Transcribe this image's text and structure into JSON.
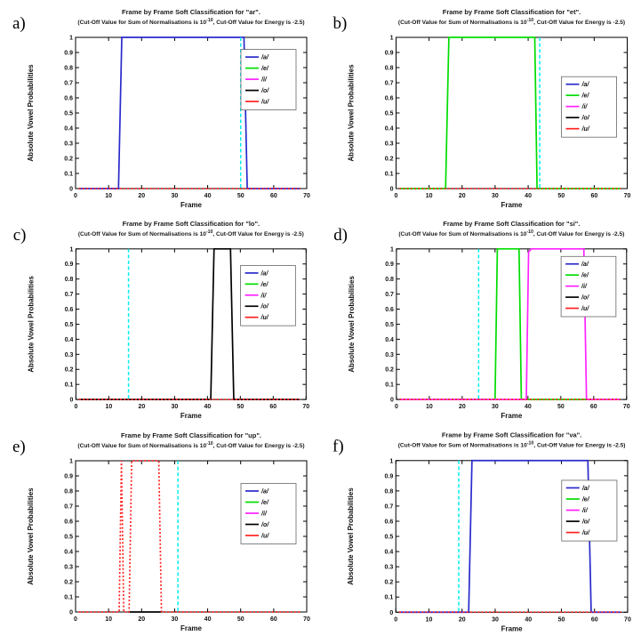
{
  "figure": {
    "subtitle": {
      "prefix": "(Cut-Off Value for Sum of Normalisations is 10",
      "superscript": "-10",
      "suffix": ", Cut-Off Value for Energy is -2.5)"
    },
    "axis": {
      "xlabel": "Frame",
      "ylabel": "Absolute Vowel Probabilities",
      "xlim": [
        0,
        70
      ],
      "ylim": [
        0,
        1
      ],
      "xticks": [
        0,
        10,
        20,
        30,
        40,
        50,
        60,
        70
      ],
      "ytick_labels": [
        "0",
        "0.1",
        "0.2",
        "0.3",
        "0.4",
        "0.5",
        "0.6",
        "0.7",
        "0.8",
        "0.9",
        "1"
      ],
      "grid": false
    },
    "legend_entries": [
      {
        "label": "/a/",
        "color": "#2a2acc"
      },
      {
        "label": "/e/",
        "color": "#00dd00"
      },
      {
        "label": "/i/",
        "color": "#ff22ff"
      },
      {
        "label": "/o/",
        "color": "#000000"
      },
      {
        "label": "/u/",
        "color": "#ff2222"
      }
    ],
    "legend_position": "right",
    "cutoff_color": "#00eeee"
  },
  "chart_data": [
    {
      "type": "line",
      "panel_label": "a)",
      "word": "ar",
      "title": "Frame by Frame Soft Classification for \"ar\".",
      "cutoff_x": 50,
      "legend_y_frac": 0.08,
      "series": [
        {
          "label": "/a/",
          "vowel": "a",
          "color": "#2a2acc",
          "style": "solid",
          "points": [
            [
              1,
              0
            ],
            [
              13,
              0
            ],
            [
              14,
              1
            ],
            [
              51,
              1
            ],
            [
              52,
              0
            ],
            [
              68,
              0
            ]
          ]
        },
        {
          "label": "/u/",
          "vowel": "u",
          "color": "#ff2222",
          "style": "dotted",
          "points": [
            [
              1,
              0
            ],
            [
              68,
              0
            ]
          ]
        }
      ]
    },
    {
      "type": "line",
      "panel_label": "b)",
      "word": "et",
      "title": "Frame by Frame Soft Classification for \"et\".",
      "cutoff_x": 43.5,
      "legend_y_frac": 0.26,
      "series": [
        {
          "label": "/e/",
          "vowel": "e",
          "color": "#00dd00",
          "style": "solid",
          "points": [
            [
              1,
              0
            ],
            [
              15,
              0
            ],
            [
              16,
              1
            ],
            [
              42,
              1
            ],
            [
              42.7,
              0
            ],
            [
              68,
              0
            ]
          ]
        },
        {
          "label": "/u/",
          "vowel": "u",
          "color": "#ff2222",
          "style": "dotted",
          "points": [
            [
              1,
              0
            ],
            [
              68,
              0
            ]
          ]
        }
      ]
    },
    {
      "type": "line",
      "panel_label": "c)",
      "word": "lo",
      "title": "Frame by Frame Soft Classification for \"lo\".",
      "cutoff_x": 16,
      "legend_y_frac": 0.11,
      "series": [
        {
          "label": "/o/",
          "vowel": "o",
          "color": "#000000",
          "style": "solid",
          "points": [
            [
              1,
              0
            ],
            [
              41,
              0
            ],
            [
              42,
              1
            ],
            [
              47,
              1
            ],
            [
              48,
              0
            ],
            [
              68,
              0
            ]
          ]
        },
        {
          "label": "/u/",
          "vowel": "u",
          "color": "#ff2222",
          "style": "dotted",
          "points": [
            [
              1,
              0
            ],
            [
              68,
              0
            ]
          ]
        }
      ]
    },
    {
      "type": "line",
      "panel_label": "d)",
      "word": "si",
      "title": "Frame by Frame Soft Classification for \"si\".",
      "cutoff_x": 25,
      "legend_y_frac": 0.05,
      "series": [
        {
          "label": "/e/",
          "vowel": "e",
          "color": "#00dd00",
          "style": "solid",
          "points": [
            [
              1,
              0
            ],
            [
              30,
              0
            ],
            [
              30.7,
              1
            ],
            [
              37.3,
              1
            ],
            [
              38,
              0
            ],
            [
              68,
              0
            ]
          ]
        },
        {
          "label": "/i/",
          "vowel": "i",
          "color": "#ff22ff",
          "style": "solid",
          "points": [
            [
              1,
              0
            ],
            [
              39.5,
              0
            ],
            [
              40.2,
              0.98
            ],
            [
              41,
              1
            ],
            [
              57,
              1
            ],
            [
              57.8,
              0
            ],
            [
              68,
              0
            ]
          ]
        },
        {
          "label": "/u/",
          "vowel": "u",
          "color": "#ff2222",
          "style": "dotted",
          "points": [
            [
              1,
              0
            ],
            [
              68,
              0
            ]
          ]
        }
      ]
    },
    {
      "type": "line",
      "panel_label": "e)",
      "word": "up",
      "title": "Frame by Frame Soft Classification for \"up\".",
      "cutoff_x": 31,
      "legend_y_frac": 0.15,
      "series": [
        {
          "label": "/o/",
          "vowel": "o",
          "color": "#000000",
          "style": "solid",
          "points": [
            [
              16,
              0
            ],
            [
              26,
              0
            ]
          ]
        },
        {
          "label": "/u/",
          "vowel": "u",
          "color": "#ff2222",
          "style": "dotted",
          "points": [
            [
              1,
              0
            ],
            [
              13.2,
              0
            ],
            [
              13.9,
              1
            ],
            [
              14.6,
              0
            ],
            [
              16.2,
              0
            ],
            [
              17,
              1
            ],
            [
              25.2,
              1
            ],
            [
              26,
              0
            ],
            [
              68,
              0
            ]
          ]
        }
      ]
    },
    {
      "type": "line",
      "panel_label": "f)",
      "word": "va",
      "title": "Frame by Frame Soft Classification for \"va\".",
      "cutoff_x": 19,
      "legend_y_frac": 0.13,
      "series": [
        {
          "label": "/a/",
          "vowel": "a",
          "color": "#2a2acc",
          "style": "solid",
          "points": [
            [
              1,
              0
            ],
            [
              22,
              0
            ],
            [
              23,
              1
            ],
            [
              58,
              1
            ],
            [
              59,
              0
            ],
            [
              68,
              0
            ]
          ]
        },
        {
          "label": "/u/",
          "vowel": "u",
          "color": "#ff2222",
          "style": "dotted",
          "points": [
            [
              1,
              0
            ],
            [
              68,
              0
            ]
          ]
        }
      ]
    }
  ]
}
